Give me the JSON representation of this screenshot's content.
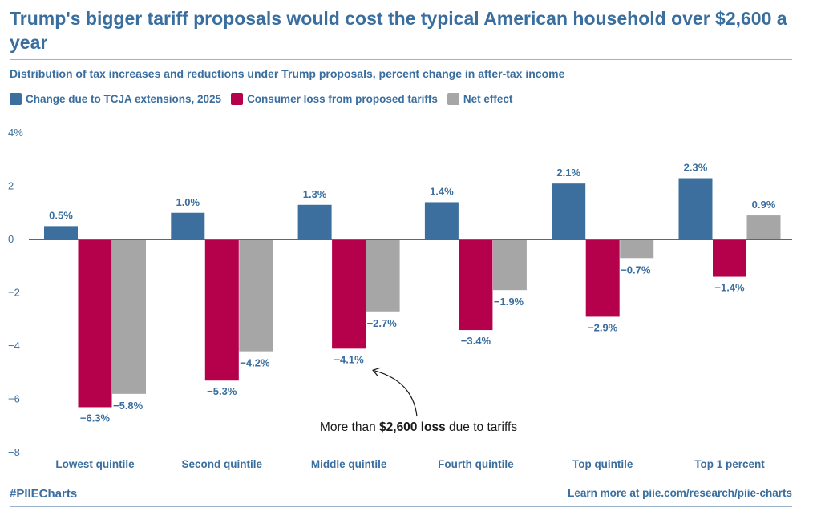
{
  "header": {
    "title": "Trump's bigger tariff proposals would cost the typical American household over $2,600 a year",
    "subtitle": "Distribution of tax increases and reductions under Trump proposals, percent change in after-tax income"
  },
  "footer": {
    "hashtag": "#PIIECharts",
    "link_text": "Learn more at piie.com/research/piie-charts"
  },
  "colors": {
    "tcja": "#3d6f9e",
    "tariffs": "#b5004b",
    "net": "#a6a6a6",
    "text": "#3a6e9f"
  },
  "chart_data": {
    "type": "bar",
    "categories": [
      "Lowest quintile",
      "Second quintile",
      "Middle quintile",
      "Fourth quintile",
      "Top quintile",
      "Top 1 percent"
    ],
    "series": [
      {
        "name": "Change due to TCJA extensions, 2025",
        "values": [
          0.5,
          1.0,
          1.3,
          1.4,
          2.1,
          2.3
        ],
        "labels": [
          "0.5%",
          "1.0%",
          "1.3%",
          "1.4%",
          "2.1%",
          "2.3%"
        ]
      },
      {
        "name": "Consumer loss from proposed tariffs",
        "values": [
          -6.3,
          -5.3,
          -4.1,
          -3.4,
          -2.9,
          -1.4
        ],
        "labels": [
          "−6.3%",
          "−5.3%",
          "−4.1%",
          "−3.4%",
          "−2.9%",
          "−1.4%"
        ]
      },
      {
        "name": "Net effect",
        "values": [
          -5.8,
          -4.2,
          -2.7,
          -1.9,
          -0.7,
          0.9
        ],
        "labels": [
          "−5.8%",
          "−4.2%",
          "−2.7%",
          "−1.9%",
          "−0.7%",
          "0.9%"
        ]
      }
    ],
    "y_ticks": [
      {
        "value": 4,
        "label": "4%"
      },
      {
        "value": 2,
        "label": "2"
      },
      {
        "value": 0,
        "label": "0"
      },
      {
        "value": -2,
        "label": "−2"
      },
      {
        "value": -4,
        "label": "−4"
      },
      {
        "value": -6,
        "label": "−6"
      },
      {
        "value": -8,
        "label": "−8"
      }
    ],
    "ylim": [
      -8,
      4
    ],
    "grid": false,
    "legend_position": "top-left",
    "annotation": {
      "prefix": "More than ",
      "bold": "$2,600 loss",
      "suffix": " due to tariffs",
      "category": "Middle quintile",
      "series": "Consumer loss from proposed tariffs"
    }
  }
}
